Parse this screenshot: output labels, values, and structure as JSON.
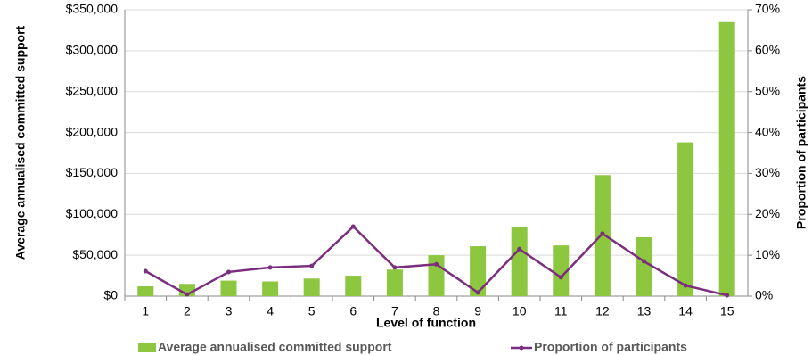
{
  "chart_data": {
    "type": "bar_line",
    "y_label": "Average annualised committed support",
    "y2_label": "Proportion of participants",
    "x_label": "Level of function",
    "categories": [
      "1",
      "2",
      "3",
      "4",
      "5",
      "6",
      "7",
      "8",
      "9",
      "10",
      "11",
      "12",
      "13",
      "14",
      "15"
    ],
    "series": [
      {
        "name": "Average annualised committed support",
        "color": "#8dc63f",
        "kind": "bar",
        "values": [
          12000,
          15000,
          19000,
          18000,
          21500,
          25000,
          32500,
          50000,
          61000,
          85000,
          62000,
          148000,
          72000,
          188000,
          335000
        ]
      },
      {
        "name": "Proportion of participants",
        "color": "#7b2d7e",
        "kind": "line",
        "axis": "y2",
        "values": [
          6.1,
          0.4,
          5.9,
          7.0,
          7.4,
          17,
          7.0,
          7.8,
          0.9,
          11.5,
          4.6,
          15.3,
          8.5,
          2.6,
          0.2
        ]
      }
    ],
    "ylim": [
      0,
      350000
    ],
    "yticks": [
      {
        "value": 0,
        "label": "$0"
      },
      {
        "value": 50000,
        "label": "$50,000"
      },
      {
        "value": 100000,
        "label": "$100,000"
      },
      {
        "value": 150000,
        "label": "$150,000"
      },
      {
        "value": 200000,
        "label": "$200,000"
      },
      {
        "value": 250000,
        "label": "$250,000"
      },
      {
        "value": 300000,
        "label": "$300,000"
      },
      {
        "value": 350000,
        "label": "$350,000"
      }
    ],
    "y2lim": [
      0,
      70
    ],
    "y2ticks": [
      {
        "value": 0,
        "label": "0%"
      },
      {
        "value": 10,
        "label": "10%"
      },
      {
        "value": 20,
        "label": "20%"
      },
      {
        "value": 30,
        "label": "30%"
      },
      {
        "value": 40,
        "label": "40%"
      },
      {
        "value": 50,
        "label": "50%"
      },
      {
        "value": 60,
        "label": "60%"
      },
      {
        "value": 70,
        "label": "70%"
      }
    ],
    "grid": true
  }
}
